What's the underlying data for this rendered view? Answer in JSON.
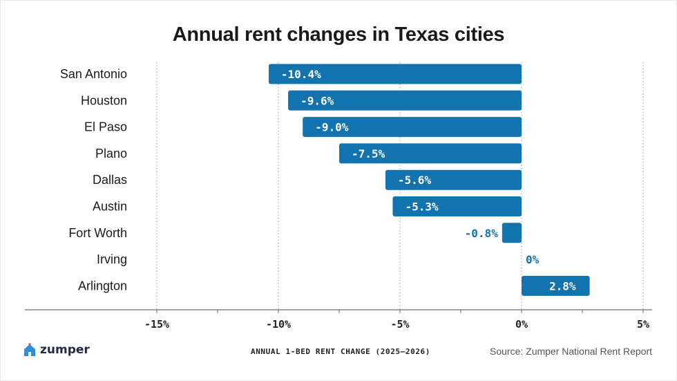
{
  "chart_data": {
    "type": "bar",
    "orientation": "horizontal",
    "title": "Annual rent changes in Texas cities",
    "xlabel": "ANNUAL 1-BED RENT CHANGE (2025–2026)",
    "ylabel": "",
    "categories": [
      "San Antonio",
      "Houston",
      "El Paso",
      "Plano",
      "Dallas",
      "Austin",
      "Fort Worth",
      "Irving",
      "Arlington"
    ],
    "values": [
      -10.4,
      -9.6,
      -9.0,
      -7.5,
      -5.6,
      -5.3,
      -0.8,
      0,
      2.8
    ],
    "value_labels": [
      "-10.4%",
      "-9.6%",
      "-9.0%",
      "-7.5%",
      "-5.6%",
      "-5.3%",
      "-0.8%",
      "0%",
      "2.8%"
    ],
    "xlim": [
      -15,
      5
    ],
    "ticks": [
      -15,
      -10,
      -5,
      0,
      5
    ],
    "tick_labels": [
      "-15%",
      "-10%",
      "-5%",
      "0%",
      "5%"
    ],
    "grid": "vertical dotted",
    "bar_color": "#1273AE",
    "label_color_outside": "#1273AE"
  },
  "footer": {
    "brand": "zumper",
    "source": "Source: Zumper National Rent Report"
  },
  "colors": {
    "brand_house": "#2a8fd6",
    "brand_heart": "#e5474f"
  }
}
